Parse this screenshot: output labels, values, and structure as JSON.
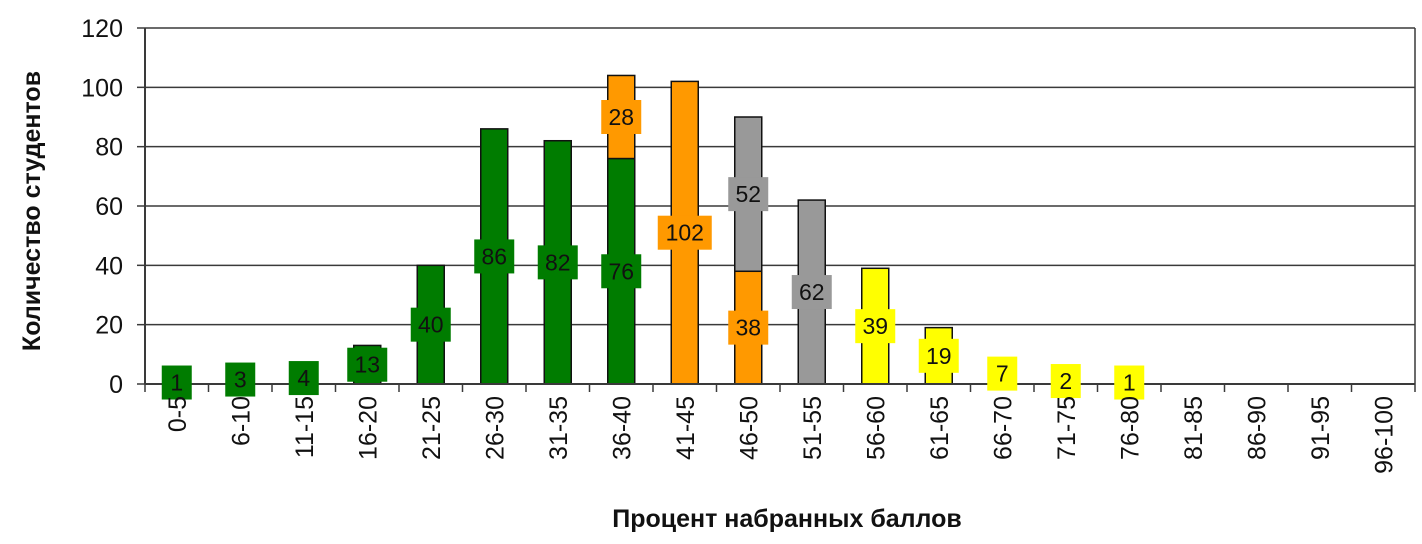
{
  "chart_data": {
    "type": "bar",
    "title": "",
    "xlabel": "Процент набранных баллов",
    "ylabel": "Количество студентов",
    "ylim": [
      0,
      120
    ],
    "yticks": [
      0,
      20,
      40,
      60,
      80,
      100,
      120
    ],
    "grid": true,
    "categories": [
      "0-5",
      "6-10",
      "11-15",
      "16-20",
      "21-25",
      "26-30",
      "31-35",
      "36-40",
      "41-45",
      "46-50",
      "51-55",
      "56-60",
      "61-65",
      "66-70",
      "71-75",
      "76-80",
      "81-85",
      "86-90",
      "91-95",
      "96-100"
    ],
    "series": [
      {
        "color": "#007c00",
        "values": [
          1,
          3,
          4,
          13,
          40,
          86,
          82,
          76,
          0,
          0,
          0,
          0,
          0,
          0,
          0,
          0,
          0,
          0,
          0,
          0
        ]
      },
      {
        "color": "#ff9900",
        "values": [
          0,
          0,
          0,
          0,
          0,
          0,
          0,
          28,
          102,
          38,
          0,
          0,
          0,
          0,
          0,
          0,
          0,
          0,
          0,
          0
        ]
      },
      {
        "color": "#999999",
        "values": [
          0,
          0,
          0,
          0,
          0,
          0,
          0,
          0,
          0,
          52,
          62,
          0,
          0,
          0,
          0,
          0,
          0,
          0,
          0,
          0
        ]
      },
      {
        "color": "#ffff00",
        "values": [
          0,
          0,
          0,
          0,
          0,
          0,
          0,
          0,
          0,
          0,
          0,
          39,
          19,
          7,
          2,
          1,
          0,
          0,
          0,
          0
        ]
      }
    ]
  }
}
